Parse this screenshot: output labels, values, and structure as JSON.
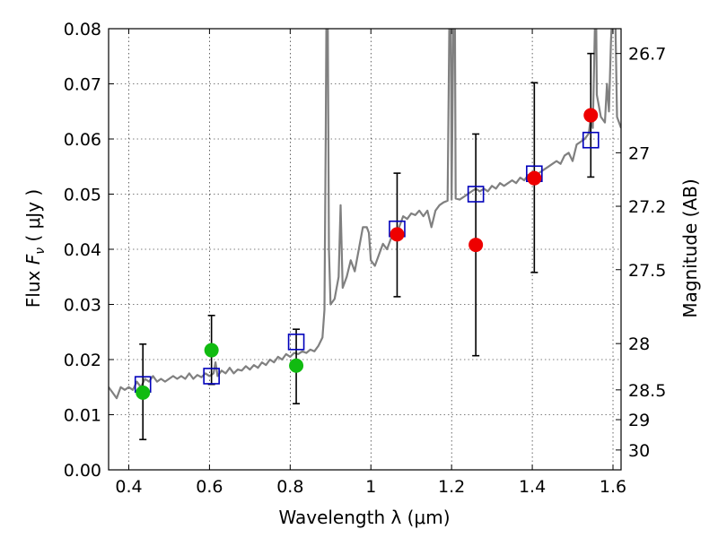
{
  "chart_data": {
    "type": "scatter",
    "xlabel": "Wavelength  λ (μm)",
    "ylabel_prefix": "Flux ",
    "ylabel_symbol": "F",
    "ylabel_subscript": "ν",
    "ylabel_units": "  ( μJy )",
    "ylabel_right": "Magnitude (AB)",
    "xlim": [
      0.35,
      1.62
    ],
    "ylim": [
      0.0,
      0.08
    ],
    "x_ticks": [
      {
        "value": 0.4,
        "label": "0.4"
      },
      {
        "value": 0.6,
        "label": "0.6"
      },
      {
        "value": 0.8,
        "label": "0.8"
      },
      {
        "value": 1.0,
        "label": "1"
      },
      {
        "value": 1.2,
        "label": "1.2"
      },
      {
        "value": 1.4,
        "label": "1.4"
      },
      {
        "value": 1.6,
        "label": "1.6"
      }
    ],
    "y_ticks": [
      {
        "value": 0.0,
        "label": "0.00"
      },
      {
        "value": 0.01,
        "label": "0.01"
      },
      {
        "value": 0.02,
        "label": "0.02"
      },
      {
        "value": 0.03,
        "label": "0.03"
      },
      {
        "value": 0.04,
        "label": "0.04"
      },
      {
        "value": 0.05,
        "label": "0.05"
      },
      {
        "value": 0.06,
        "label": "0.06"
      },
      {
        "value": 0.07,
        "label": "0.07"
      },
      {
        "value": 0.08,
        "label": "0.08"
      }
    ],
    "right_ticks": [
      {
        "flux": 0.0755,
        "label": "26.7"
      },
      {
        "flux": 0.0575,
        "label": "27"
      },
      {
        "flux": 0.0478,
        "label": "27.2"
      },
      {
        "flux": 0.0363,
        "label": "27.5"
      },
      {
        "flux": 0.0229,
        "label": "28"
      },
      {
        "flux": 0.0145,
        "label": "28.5"
      },
      {
        "flux": 0.0091,
        "label": "29"
      },
      {
        "flux": 0.0036,
        "label": "30"
      }
    ],
    "grid": true,
    "colors": {
      "spectrum": "#808080",
      "green": "#11bb11",
      "red": "#ee0000",
      "model": "#0000bb",
      "errorbar": "#000000"
    },
    "spectrum": [
      [
        0.35,
        0.015
      ],
      [
        0.36,
        0.014
      ],
      [
        0.37,
        0.013
      ],
      [
        0.38,
        0.015
      ],
      [
        0.39,
        0.0145
      ],
      [
        0.4,
        0.015
      ],
      [
        0.41,
        0.0145
      ],
      [
        0.42,
        0.016
      ],
      [
        0.43,
        0.015
      ],
      [
        0.44,
        0.0165
      ],
      [
        0.45,
        0.016
      ],
      [
        0.46,
        0.017
      ],
      [
        0.47,
        0.016
      ],
      [
        0.48,
        0.0165
      ],
      [
        0.49,
        0.016
      ],
      [
        0.5,
        0.0165
      ],
      [
        0.51,
        0.017
      ],
      [
        0.52,
        0.0165
      ],
      [
        0.53,
        0.017
      ],
      [
        0.54,
        0.0165
      ],
      [
        0.55,
        0.0175
      ],
      [
        0.56,
        0.0165
      ],
      [
        0.57,
        0.0172
      ],
      [
        0.58,
        0.0168
      ],
      [
        0.59,
        0.0175
      ],
      [
        0.6,
        0.017
      ],
      [
        0.61,
        0.0175
      ],
      [
        0.615,
        0.0195
      ],
      [
        0.62,
        0.017
      ],
      [
        0.63,
        0.018
      ],
      [
        0.64,
        0.0175
      ],
      [
        0.65,
        0.0185
      ],
      [
        0.66,
        0.0175
      ],
      [
        0.67,
        0.0182
      ],
      [
        0.68,
        0.018
      ],
      [
        0.69,
        0.0188
      ],
      [
        0.7,
        0.0182
      ],
      [
        0.71,
        0.019
      ],
      [
        0.72,
        0.0185
      ],
      [
        0.73,
        0.0195
      ],
      [
        0.74,
        0.019
      ],
      [
        0.75,
        0.02
      ],
      [
        0.76,
        0.0195
      ],
      [
        0.77,
        0.0205
      ],
      [
        0.78,
        0.02
      ],
      [
        0.79,
        0.021
      ],
      [
        0.8,
        0.0205
      ],
      [
        0.81,
        0.0212
      ],
      [
        0.82,
        0.021
      ],
      [
        0.83,
        0.0215
      ],
      [
        0.84,
        0.0212
      ],
      [
        0.85,
        0.0218
      ],
      [
        0.86,
        0.0215
      ],
      [
        0.87,
        0.0225
      ],
      [
        0.88,
        0.024
      ],
      [
        0.885,
        0.029
      ],
      [
        0.888,
        0.06
      ],
      [
        0.89,
        0.085
      ],
      [
        0.893,
        0.085
      ],
      [
        0.896,
        0.04
      ],
      [
        0.9,
        0.03
      ],
      [
        0.91,
        0.031
      ],
      [
        0.92,
        0.035
      ],
      [
        0.925,
        0.048
      ],
      [
        0.93,
        0.033
      ],
      [
        0.94,
        0.035
      ],
      [
        0.95,
        0.038
      ],
      [
        0.96,
        0.036
      ],
      [
        0.97,
        0.04
      ],
      [
        0.98,
        0.044
      ],
      [
        0.99,
        0.044
      ],
      [
        0.995,
        0.043
      ],
      [
        1.0,
        0.038
      ],
      [
        1.01,
        0.037
      ],
      [
        1.02,
        0.039
      ],
      [
        1.03,
        0.041
      ],
      [
        1.04,
        0.04
      ],
      [
        1.05,
        0.042
      ],
      [
        1.06,
        0.0425
      ],
      [
        1.07,
        0.044
      ],
      [
        1.08,
        0.046
      ],
      [
        1.09,
        0.0455
      ],
      [
        1.1,
        0.0465
      ],
      [
        1.11,
        0.0462
      ],
      [
        1.12,
        0.047
      ],
      [
        1.13,
        0.046
      ],
      [
        1.14,
        0.047
      ],
      [
        1.15,
        0.044
      ],
      [
        1.16,
        0.047
      ],
      [
        1.17,
        0.048
      ],
      [
        1.18,
        0.0485
      ],
      [
        1.19,
        0.0488
      ],
      [
        1.195,
        0.085
      ],
      [
        1.198,
        0.085
      ],
      [
        1.2,
        0.049
      ],
      [
        1.205,
        0.085
      ],
      [
        1.208,
        0.085
      ],
      [
        1.21,
        0.0492
      ],
      [
        1.22,
        0.049
      ],
      [
        1.23,
        0.0495
      ],
      [
        1.24,
        0.05
      ],
      [
        1.25,
        0.0505
      ],
      [
        1.26,
        0.051
      ],
      [
        1.27,
        0.0505
      ],
      [
        1.28,
        0.051
      ],
      [
        1.29,
        0.0505
      ],
      [
        1.3,
        0.0515
      ],
      [
        1.31,
        0.051
      ],
      [
        1.32,
        0.052
      ],
      [
        1.33,
        0.0515
      ],
      [
        1.34,
        0.052
      ],
      [
        1.35,
        0.0525
      ],
      [
        1.36,
        0.052
      ],
      [
        1.37,
        0.053
      ],
      [
        1.38,
        0.0525
      ],
      [
        1.39,
        0.0535
      ],
      [
        1.4,
        0.053
      ],
      [
        1.41,
        0.0535
      ],
      [
        1.42,
        0.054
      ],
      [
        1.43,
        0.0545
      ],
      [
        1.44,
        0.055
      ],
      [
        1.45,
        0.0555
      ],
      [
        1.46,
        0.056
      ],
      [
        1.47,
        0.0555
      ],
      [
        1.48,
        0.057
      ],
      [
        1.49,
        0.0575
      ],
      [
        1.5,
        0.056
      ],
      [
        1.51,
        0.059
      ],
      [
        1.52,
        0.0595
      ],
      [
        1.53,
        0.06
      ],
      [
        1.54,
        0.061
      ],
      [
        1.545,
        0.064
      ],
      [
        1.55,
        0.062
      ],
      [
        1.555,
        0.08
      ],
      [
        1.558,
        0.085
      ],
      [
        1.56,
        0.068
      ],
      [
        1.57,
        0.064
      ],
      [
        1.58,
        0.063
      ],
      [
        1.585,
        0.07
      ],
      [
        1.59,
        0.065
      ],
      [
        1.595,
        0.078
      ],
      [
        1.6,
        0.085
      ],
      [
        1.605,
        0.085
      ],
      [
        1.61,
        0.064
      ],
      [
        1.62,
        0.062
      ]
    ],
    "green_points": [
      {
        "x": 0.435,
        "y": 0.014,
        "err_low": 0.0055,
        "err_high": 0.0228
      },
      {
        "x": 0.605,
        "y": 0.0217,
        "err_low": 0.0155,
        "err_high": 0.028
      },
      {
        "x": 0.815,
        "y": 0.0189,
        "err_low": 0.012,
        "err_high": 0.0255
      }
    ],
    "red_points": [
      {
        "x": 1.065,
        "y": 0.0427,
        "err_low": 0.0314,
        "err_high": 0.0538
      },
      {
        "x": 1.26,
        "y": 0.0408,
        "err_low": 0.0207,
        "err_high": 0.0609
      },
      {
        "x": 1.405,
        "y": 0.0529,
        "err_low": 0.0358,
        "err_high": 0.0702
      },
      {
        "x": 1.545,
        "y": 0.0643,
        "err_low": 0.0531,
        "err_high": 0.0755
      }
    ],
    "model_points": [
      {
        "x": 0.435,
        "y": 0.0155
      },
      {
        "x": 0.605,
        "y": 0.017
      },
      {
        "x": 0.815,
        "y": 0.0232
      },
      {
        "x": 1.065,
        "y": 0.0437
      },
      {
        "x": 1.26,
        "y": 0.05
      },
      {
        "x": 1.405,
        "y": 0.0537
      },
      {
        "x": 1.545,
        "y": 0.0598
      }
    ]
  }
}
